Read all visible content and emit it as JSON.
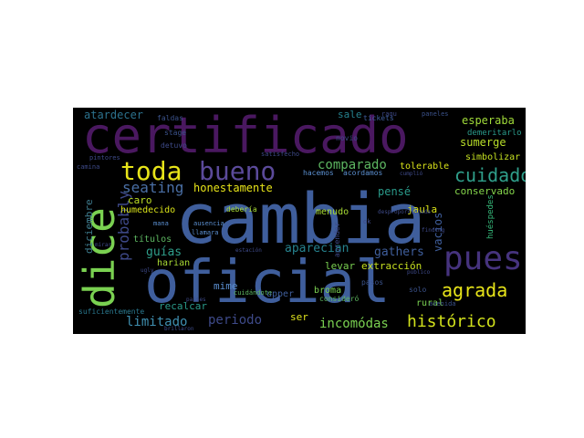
{
  "words": [
    {
      "id": "cambia",
      "text": "cambia",
      "color": "#3f5e9c"
    },
    {
      "id": "oficial",
      "text": "oficial",
      "color": "#3f5e9c"
    },
    {
      "id": "certificado",
      "text": "certificado",
      "color": "#4a1860"
    },
    {
      "id": "dice",
      "text": "dice",
      "color": "#7ad151"
    },
    {
      "id": "pues",
      "text": "pues",
      "color": "#46337e"
    },
    {
      "id": "toda",
      "text": "toda",
      "color": "#e7e419"
    },
    {
      "id": "bueno",
      "text": "bueno",
      "color": "#5b4a9a"
    },
    {
      "id": "cuidado",
      "text": "cuidado",
      "color": "#2f9e8a"
    },
    {
      "id": "agrada",
      "text": "agrada",
      "color": "#e7e419"
    },
    {
      "id": "historico",
      "text": "histórico",
      "color": "#d2e21b"
    },
    {
      "id": "comparado",
      "text": "comparado",
      "color": "#5db661"
    },
    {
      "id": "probably",
      "text": "probably",
      "color": "#3e4989"
    },
    {
      "id": "seating",
      "text": "seating",
      "color": "#4a6fa5"
    },
    {
      "id": "incomodas",
      "text": "incomódas",
      "color": "#7ad151"
    },
    {
      "id": "limitado",
      "text": "limitado",
      "color": "#3f8fb0"
    },
    {
      "id": "periodo",
      "text": "periodo",
      "color": "#3e4a89"
    },
    {
      "id": "esperaba",
      "text": "esperaba",
      "color": "#a0da39"
    },
    {
      "id": "sumerge",
      "text": "sumerge",
      "color": "#b8de29"
    },
    {
      "id": "atardecer",
      "text": "atardecer",
      "color": "#2c728e"
    },
    {
      "id": "honestamente",
      "text": "honestamente",
      "color": "#e7e419"
    },
    {
      "id": "guias",
      "text": "guías",
      "color": "#2f9e8a"
    },
    {
      "id": "aparecian",
      "text": "aparecian",
      "color": "#26828e"
    },
    {
      "id": "gathers",
      "text": "gathers",
      "color": "#3f5e9c"
    },
    {
      "id": "vacios",
      "text": "vacios",
      "color": "#3f5e9c"
    },
    {
      "id": "conservado",
      "text": "conservado",
      "color": "#84d44b"
    },
    {
      "id": "jaula",
      "text": "jaula",
      "color": "#d8e219"
    },
    {
      "id": "simbolizar",
      "text": "simbolizar",
      "color": "#c4e021"
    },
    {
      "id": "caro",
      "text": "caro",
      "color": "#bddf26"
    },
    {
      "id": "pense",
      "text": "pensé",
      "color": "#2a9a8a"
    },
    {
      "id": "diciembre",
      "text": "diciembre",
      "color": "#3e7c8e"
    },
    {
      "id": "sale",
      "text": "sale",
      "color": "#26828e"
    },
    {
      "id": "ser",
      "text": "ser",
      "color": "#e0e31d"
    },
    {
      "id": "extraccion",
      "text": "extracción",
      "color": "#c7e020"
    },
    {
      "id": "levar",
      "text": "levar",
      "color": "#7ad151"
    },
    {
      "id": "mime",
      "text": "mime",
      "color": "#5b8fd0"
    },
    {
      "id": "titulos",
      "text": "títulos",
      "color": "#5db661"
    },
    {
      "id": "harian",
      "text": "harian",
      "color": "#a8db34"
    },
    {
      "id": "recalcar",
      "text": "recalcar",
      "color": "#2a9a8a"
    },
    {
      "id": "upper",
      "text": "upper",
      "color": "#3f5e9c"
    },
    {
      "id": "broma",
      "text": "broma",
      "color": "#7ad151"
    },
    {
      "id": "humedecido",
      "text": "humedecido",
      "color": "#d8e219"
    },
    {
      "id": "menudo",
      "text": "menudo",
      "color": "#a8db34"
    },
    {
      "id": "tolerable",
      "text": "tolerable",
      "color": "#d8e219"
    },
    {
      "id": "deberia",
      "text": "debería",
      "color": "#a8db34"
    },
    {
      "id": "demeritarlo",
      "text": "demeritarlo",
      "color": "#2a9a8a"
    },
    {
      "id": "huespedes",
      "text": "huéspedes",
      "color": "#35b779"
    },
    {
      "id": "rural",
      "text": "rural",
      "color": "#7ad151"
    },
    {
      "id": "tickets",
      "text": "tickets",
      "color": "#3f5e9c"
    },
    {
      "id": "detuvo",
      "text": "detuvo",
      "color": "#3e4a89"
    },
    {
      "id": "faldas",
      "text": "faldas",
      "color": "#3b528b"
    },
    {
      "id": "stage",
      "text": "stage",
      "color": "#3b528b"
    },
    {
      "id": "novio",
      "text": "novio",
      "color": "#3e4a89"
    },
    {
      "id": "hacemos",
      "text": "hacemos",
      "color": "#5b8fd0"
    },
    {
      "id": "acordamos",
      "text": "acordamos",
      "color": "#5b8fd0"
    },
    {
      "id": "paneles",
      "text": "paneles",
      "color": "#3b528b"
    },
    {
      "id": "aprender",
      "text": "aprender",
      "color": "#3e4a89"
    },
    {
      "id": "considero",
      "text": "consideró",
      "color": "#5db661"
    },
    {
      "id": "pasos",
      "text": "pasos",
      "color": "#3b528b"
    },
    {
      "id": "solo",
      "text": "solo",
      "color": "#3b528b"
    },
    {
      "id": "avenida",
      "text": "avenida",
      "color": "#3b528b"
    },
    {
      "id": "suficientemente",
      "text": "suficientemente",
      "color": "#2a788e"
    },
    {
      "id": "pintores",
      "text": "pintores",
      "color": "#3e4a89"
    },
    {
      "id": "camina",
      "text": "camina",
      "color": "#3e4a89"
    },
    {
      "id": "ausencia",
      "text": "ausencia",
      "color": "#5b8fd0"
    },
    {
      "id": "llamara",
      "text": "llamara",
      "color": "#5b8fd0"
    },
    {
      "id": "mana",
      "text": "mana",
      "color": "#5b8fd0"
    },
    {
      "id": "cuidandote",
      "text": "cuidándote",
      "color": "#5db661"
    },
    {
      "id": "estacion",
      "text": "estación",
      "color": "#3e4a89"
    },
    {
      "id": "paises",
      "text": "paises",
      "color": "#3e4a89"
    },
    {
      "id": "brillaron",
      "text": "brillaron",
      "color": "#3e4a89"
    },
    {
      "id": "desproporcionada",
      "text": "desproporcionada",
      "color": "#3e4a89"
    },
    {
      "id": "finding",
      "text": "finding",
      "color": "#3e4a89"
    },
    {
      "id": "publico",
      "text": "público",
      "color": "#3e4a89"
    },
    {
      "id": "ok",
      "text": "ok",
      "color": "#3e4a89"
    },
    {
      "id": "cumplio",
      "text": "cumplió",
      "color": "#3e4a89"
    },
    {
      "id": "satisfecho",
      "text": "satisfecho",
      "color": "#3e4a89"
    },
    {
      "id": "mirar",
      "text": "mirar",
      "color": "#3e4a89"
    },
    {
      "id": "ugly",
      "text": "ugly",
      "color": "#3e4a89"
    },
    {
      "id": "raqu",
      "text": "raqu",
      "color": "#3e4a89"
    }
  ]
}
